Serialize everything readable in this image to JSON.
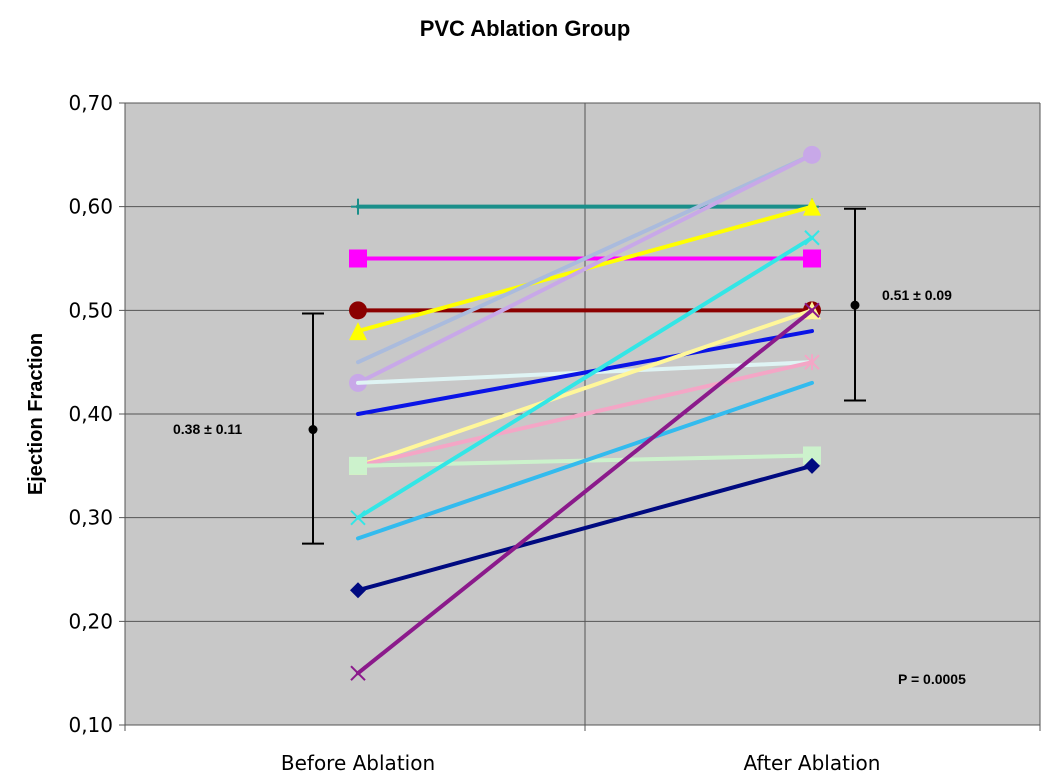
{
  "chart_data": {
    "type": "line",
    "title": "PVC Ablation Group",
    "xlabel": "",
    "ylabel": "Ejection Fraction",
    "categories": [
      "Before Ablation",
      "After Ablation"
    ],
    "ylim": [
      0.1,
      0.7
    ],
    "yticks": [
      "0,10",
      "0,20",
      "0,30",
      "0,40",
      "0,50",
      "0,60",
      "0,70"
    ],
    "grid": true,
    "background": "#c8c8c8",
    "series": [
      {
        "values": [
          0.6,
          0.6
        ],
        "color": "#1a8f8a",
        "marker": "plus"
      },
      {
        "values": [
          0.55,
          0.55
        ],
        "color": "#ff00ff",
        "marker": "square"
      },
      {
        "values": [
          0.5,
          0.5
        ],
        "color": "#8b0000",
        "marker": "circle"
      },
      {
        "values": [
          0.48,
          0.6
        ],
        "color": "#ffff00",
        "marker": "triangle"
      },
      {
        "values": [
          0.45,
          0.65
        ],
        "color": "#aabbdd",
        "marker": "none"
      },
      {
        "values": [
          0.43,
          0.65
        ],
        "color": "#c8a8e8",
        "marker": "circle"
      },
      {
        "values": [
          0.43,
          0.45
        ],
        "color": "#dff4f4",
        "marker": "none"
      },
      {
        "values": [
          0.4,
          0.48
        ],
        "color": "#0a14e6",
        "marker": "none"
      },
      {
        "values": [
          0.35,
          0.5
        ],
        "color": "#fff79a",
        "marker": "triangle"
      },
      {
        "values": [
          0.35,
          0.45
        ],
        "color": "#f4a6c6",
        "marker": "star"
      },
      {
        "values": [
          0.35,
          0.36
        ],
        "color": "#ccf2cc",
        "marker": "square"
      },
      {
        "values": [
          0.3,
          0.57
        ],
        "color": "#33e6e6",
        "marker": "x"
      },
      {
        "values": [
          0.28,
          0.43
        ],
        "color": "#33bbee",
        "marker": "none"
      },
      {
        "values": [
          0.23,
          0.35
        ],
        "color": "#000a80",
        "marker": "diamond"
      },
      {
        "values": [
          0.15,
          0.5
        ],
        "color": "#8b1a8b",
        "marker": "x"
      }
    ],
    "annotations": {
      "before": {
        "mean": 0.385,
        "low": 0.275,
        "high": 0.497,
        "label": "0.38 ± 0.11"
      },
      "after": {
        "mean": 0.505,
        "low": 0.413,
        "high": 0.598,
        "label": "0.51 ± 0.09"
      },
      "p_value": "P = 0.0005"
    }
  }
}
